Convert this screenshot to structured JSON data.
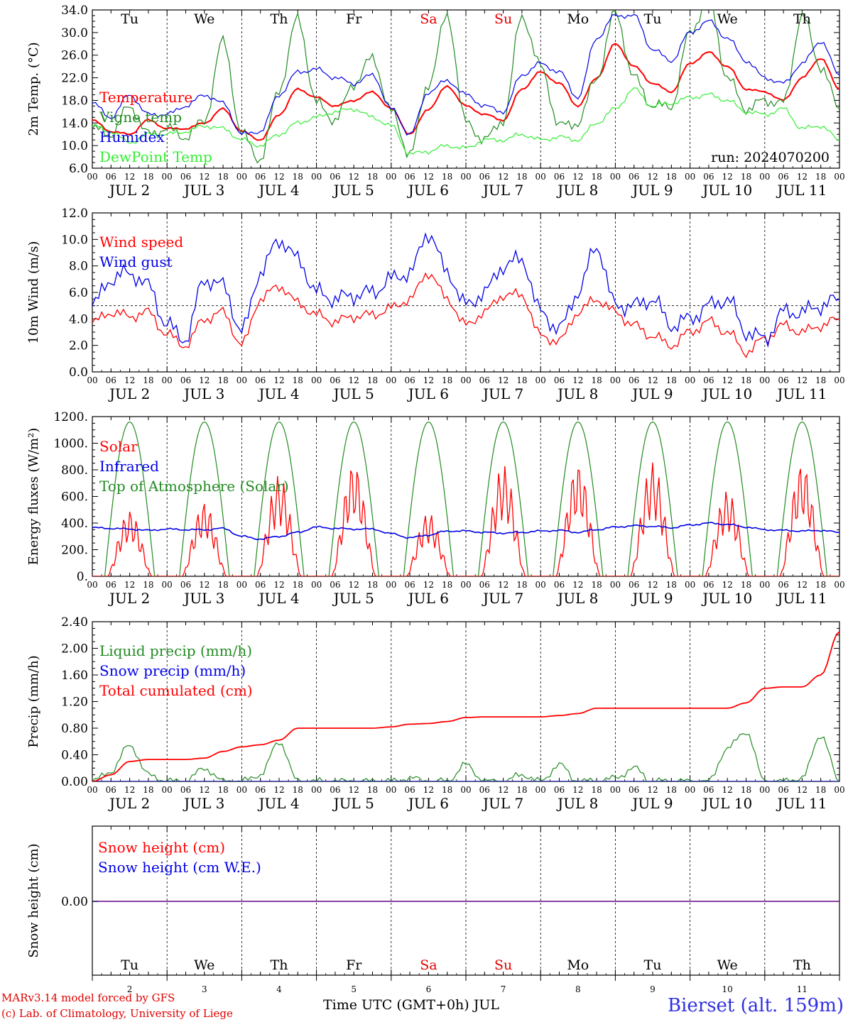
{
  "run_label": "run: 2024070200",
  "footer": {
    "model": "MARv3.14 model forced by GFS",
    "credit": "(c) Lab. of Climatology, University of Liege",
    "time_axis": "Time UTC (GMT+0h) JUL",
    "station": "Bierset (alt. 159m)"
  },
  "days": [
    "Tu",
    "We",
    "Th",
    "Fr",
    "Sa",
    "Su",
    "Mo",
    "Tu",
    "We",
    "Th"
  ],
  "day_colors": [
    "#000000",
    "#000000",
    "#000000",
    "#000000",
    "#e00000",
    "#e00000",
    "#000000",
    "#000000",
    "#000000",
    "#000000"
  ],
  "date_labels": [
    "JUL  2",
    "JUL  3",
    "JUL  4",
    "JUL  5",
    "JUL  6",
    "JUL  7",
    "JUL  8",
    "JUL  9",
    "JUL 10",
    "JUL 11"
  ],
  "day_numbers": [
    "2",
    "3",
    "4",
    "5",
    "6",
    "7",
    "8",
    "9",
    "10",
    "11"
  ],
  "hour_labels": [
    "00",
    "06",
    "12",
    "18"
  ],
  "chart_data": [
    {
      "type": "line",
      "ylabel": "2m Temp. (°C)",
      "ylim": [
        6.0,
        34.0
      ],
      "yticks": [
        "6.0",
        "10.0",
        "14.0",
        "18.0",
        "22.0",
        "26.0",
        "30.0",
        "34.0"
      ],
      "x_hours": [
        0,
        6,
        12,
        18,
        24,
        30,
        36,
        42,
        48,
        54,
        60,
        66,
        72,
        78,
        84,
        90,
        96,
        102,
        108,
        114,
        120,
        126,
        132,
        138,
        144,
        150,
        156,
        162,
        168,
        174,
        180,
        186,
        192,
        198,
        204,
        210,
        216,
        222,
        228,
        234,
        240
      ],
      "series": [
        {
          "name": "Temperature",
          "color": "#ff0000",
          "values": [
            14.5,
            12.5,
            12.0,
            14.5,
            13.0,
            13.0,
            14.0,
            16.5,
            12.5,
            11.0,
            15.5,
            20.0,
            18.5,
            17.0,
            18.0,
            19.5,
            16.5,
            12.0,
            16.5,
            20.5,
            17.0,
            15.5,
            14.5,
            20.0,
            23.0,
            21.0,
            17.0,
            22.0,
            28.0,
            24.0,
            21.0,
            19.5,
            24.5,
            26.5,
            24.0,
            20.0,
            19.5,
            18.0,
            22.0,
            25.5,
            20.0
          ]
        },
        {
          "name": "Vigne temp",
          "color": "#228b22",
          "values": [
            13.0,
            12.0,
            17.0,
            12.0,
            13.0,
            11.5,
            14.5,
            28.5,
            12.0,
            7.5,
            20.0,
            32.5,
            17.5,
            14.5,
            21.0,
            25.5,
            16.0,
            8.5,
            21.0,
            33.0,
            14.0,
            11.0,
            14.5,
            33.0,
            24.0,
            13.5,
            14.0,
            22.0,
            33.5,
            22.0,
            17.0,
            17.0,
            30.0,
            36.0,
            22.0,
            16.5,
            18.0,
            17.5,
            33.0,
            24.0,
            16.5
          ]
        },
        {
          "name": "Humidex",
          "color": "#0000e6",
          "values": [
            17.5,
            15.0,
            19.0,
            15.5,
            15.5,
            17.0,
            19.0,
            17.5,
            12.0,
            12.5,
            19.0,
            23.0,
            23.5,
            22.0,
            21.0,
            22.5,
            16.5,
            12.0,
            19.5,
            21.5,
            19.0,
            17.0,
            16.0,
            22.5,
            24.5,
            23.0,
            18.5,
            29.0,
            33.0,
            33.0,
            27.0,
            25.0,
            30.0,
            32.0,
            29.0,
            25.0,
            22.0,
            21.0,
            24.5,
            28.5,
            22.5
          ]
        },
        {
          "name": "DewPoint Temp",
          "color": "#33ee33",
          "values": [
            13.5,
            12.5,
            10.5,
            12.0,
            12.0,
            12.5,
            13.5,
            13.0,
            11.0,
            10.0,
            12.0,
            14.0,
            15.0,
            16.0,
            16.5,
            15.0,
            13.5,
            8.5,
            9.0,
            10.0,
            9.5,
            11.0,
            11.0,
            12.0,
            11.0,
            11.5,
            11.0,
            14.0,
            16.5,
            20.0,
            17.0,
            17.5,
            18.5,
            19.0,
            18.0,
            16.0,
            15.5,
            16.5,
            13.0,
            13.5,
            11.0
          ]
        }
      ]
    },
    {
      "type": "line",
      "ylabel": "10m Wind (m/s)",
      "ylim": [
        0.0,
        12.0
      ],
      "yticks": [
        "0.0",
        "2.0",
        "4.0",
        "6.0",
        "8.0",
        "10.0",
        "12.0"
      ],
      "ref_line": 5.0,
      "x_hours": [
        0,
        6,
        12,
        18,
        24,
        30,
        36,
        42,
        48,
        54,
        60,
        66,
        72,
        78,
        84,
        90,
        96,
        102,
        108,
        114,
        120,
        126,
        132,
        138,
        144,
        150,
        156,
        162,
        168,
        174,
        180,
        186,
        192,
        198,
        204,
        210,
        216,
        222,
        228,
        234,
        240
      ],
      "series": [
        {
          "name": "Wind speed",
          "color": "#ff0000",
          "values": [
            3.7,
            4.5,
            4.2,
            4.5,
            2.8,
            2.0,
            4.0,
            4.5,
            2.0,
            5.5,
            6.5,
            5.2,
            4.3,
            3.8,
            4.2,
            4.3,
            4.8,
            5.5,
            7.5,
            5.5,
            3.5,
            4.5,
            5.8,
            5.8,
            2.7,
            2.3,
            4.5,
            5.5,
            4.5,
            3.5,
            2.7,
            2.0,
            3.0,
            3.8,
            3.0,
            1.5,
            2.5,
            3.5,
            3.0,
            3.5,
            4.0
          ]
        },
        {
          "name": "Wind gust",
          "color": "#0000e6",
          "values": [
            5.0,
            7.0,
            7.5,
            6.5,
            3.5,
            2.5,
            7.0,
            6.5,
            3.0,
            7.5,
            10.0,
            8.5,
            6.0,
            5.5,
            5.8,
            6.0,
            7.0,
            7.5,
            10.5,
            7.5,
            5.0,
            6.0,
            8.0,
            8.5,
            4.5,
            3.2,
            6.0,
            9.5,
            5.0,
            5.0,
            5.5,
            3.5,
            4.0,
            5.0,
            5.5,
            3.0,
            2.5,
            4.5,
            4.5,
            5.0,
            5.5
          ]
        }
      ]
    },
    {
      "type": "line",
      "ylabel": "Energy fluxes (W/m²)",
      "ylim": [
        0,
        1200
      ],
      "yticks": [
        "0.",
        "200.",
        "400.",
        "600.",
        "800.",
        "1000.",
        "1200."
      ],
      "solar_peaks": [
        500,
        560,
        760,
        860,
        480,
        840,
        860,
        860,
        650,
        860
      ],
      "toa_peak": 1160,
      "infrared_values": [
        365,
        360,
        355,
        345,
        355,
        350,
        350,
        360,
        300,
        280,
        300,
        330,
        370,
        360,
        355,
        355,
        320,
        290,
        310,
        340,
        340,
        330,
        325,
        330,
        340,
        345,
        330,
        350,
        370,
        380,
        375,
        365,
        385,
        400,
        390,
        370,
        350,
        345,
        340,
        345,
        330
      ],
      "series": [
        {
          "name": "Solar",
          "color": "#ff0000"
        },
        {
          "name": "Infrared",
          "color": "#0000e6"
        },
        {
          "name": "Top of Atmosphere (Solar)",
          "color": "#228b22"
        }
      ]
    },
    {
      "type": "line",
      "ylabel": "Precip (mm/h)",
      "ylim": [
        0.0,
        2.4
      ],
      "yticks": [
        "0.00",
        "0.40",
        "0.80",
        "1.20",
        "1.60",
        "2.00",
        "2.40"
      ],
      "x_hours": [
        0,
        6,
        12,
        18,
        24,
        30,
        36,
        42,
        48,
        54,
        60,
        66,
        72,
        78,
        84,
        90,
        96,
        102,
        108,
        114,
        120,
        126,
        132,
        138,
        144,
        150,
        156,
        162,
        168,
        174,
        180,
        186,
        192,
        198,
        204,
        210,
        216,
        222,
        228,
        234,
        240
      ],
      "series": [
        {
          "name": "Liquid precip (mm/h)",
          "color": "#228b22",
          "values": [
            0.0,
            0.15,
            0.55,
            0.1,
            0.0,
            0.0,
            0.2,
            0.0,
            0.0,
            0.1,
            0.6,
            0.0,
            0.0,
            0.0,
            0.0,
            0.0,
            0.0,
            0.05,
            0.0,
            0.0,
            0.25,
            0.0,
            0.0,
            0.1,
            0.0,
            0.25,
            0.0,
            0.0,
            0.05,
            0.2,
            0.0,
            0.0,
            0.0,
            0.0,
            0.5,
            0.75,
            0.0,
            0.0,
            0.05,
            0.7,
            0.0
          ]
        },
        {
          "name": "Snow precip (mm/h)",
          "color": "#0000e6",
          "values": [
            0,
            0,
            0,
            0,
            0,
            0,
            0,
            0,
            0,
            0,
            0,
            0,
            0,
            0,
            0,
            0,
            0,
            0,
            0,
            0,
            0,
            0,
            0,
            0,
            0,
            0,
            0,
            0,
            0,
            0,
            0,
            0,
            0,
            0,
            0,
            0,
            0,
            0,
            0,
            0,
            0
          ]
        },
        {
          "name": "Total cumulated (cm)",
          "color": "#ff0000",
          "values": [
            0.0,
            0.1,
            0.3,
            0.33,
            0.33,
            0.33,
            0.35,
            0.45,
            0.52,
            0.55,
            0.62,
            0.8,
            0.8,
            0.8,
            0.8,
            0.8,
            0.82,
            0.86,
            0.87,
            0.9,
            0.96,
            0.97,
            0.97,
            0.97,
            0.97,
            0.99,
            1.02,
            1.1,
            1.1,
            1.1,
            1.1,
            1.1,
            1.1,
            1.1,
            1.1,
            1.18,
            1.4,
            1.42,
            1.42,
            1.6,
            2.25
          ]
        }
      ]
    },
    {
      "type": "line",
      "ylabel": "Snow height (cm)",
      "yticks": [
        "0.00"
      ],
      "series": [
        {
          "name": "Snow height (cm)",
          "color": "#ff0000",
          "values": [
            0,
            0
          ]
        },
        {
          "name": "Snow height (cm W.E.)",
          "color": "#0000e6",
          "values": [
            0,
            0
          ]
        }
      ]
    }
  ]
}
